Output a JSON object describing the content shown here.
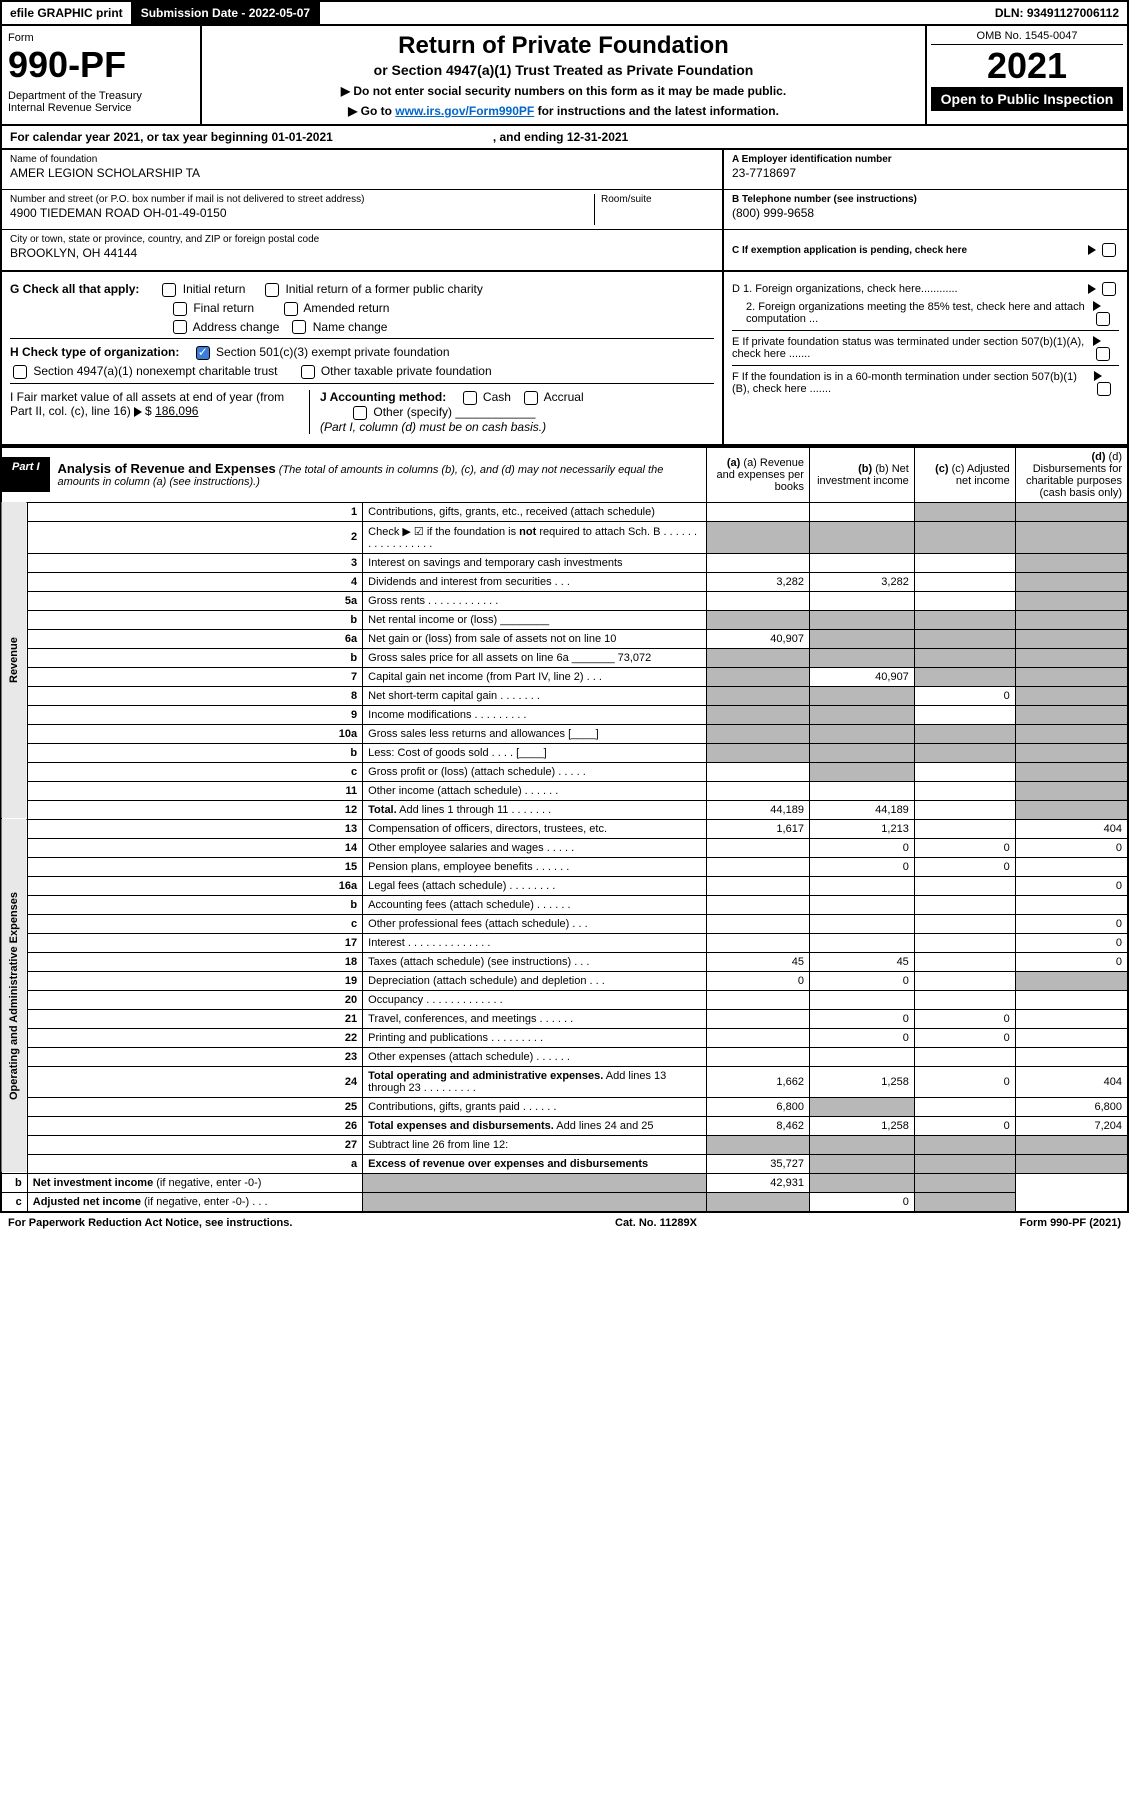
{
  "topbar": {
    "efile": "efile GRAPHIC print",
    "sub_label": "Submission Date - 2022-05-07",
    "dln": "DLN: 93491127006112"
  },
  "header": {
    "form_label": "Form",
    "form_num": "990-PF",
    "dept": "Department of the Treasury\nInternal Revenue Service",
    "title": "Return of Private Foundation",
    "subtitle": "or Section 4947(a)(1) Trust Treated as Private Foundation",
    "instr1": "▶ Do not enter social security numbers on this form as it may be made public.",
    "instr2_pre": "▶ Go to ",
    "instr2_link": "www.irs.gov/Form990PF",
    "instr2_post": " for instructions and the latest information.",
    "omb": "OMB No. 1545-0047",
    "year": "2021",
    "open_pub": "Open to Public Inspection"
  },
  "cal_year": {
    "pre": "For calendar year 2021, or tax year beginning 01-01-2021",
    "mid": ", and ending 12-31-2021"
  },
  "info": {
    "name_lbl": "Name of foundation",
    "name_val": "AMER LEGION SCHOLARSHIP TA",
    "addr_lbl": "Number and street (or P.O. box number if mail is not delivered to street address)",
    "addr_val": "4900 TIEDEMAN ROAD OH-01-49-0150",
    "room_lbl": "Room/suite",
    "city_lbl": "City or town, state or province, country, and ZIP or foreign postal code",
    "city_val": "BROOKLYN, OH  44144",
    "ein_lbl": "A Employer identification number",
    "ein_val": "23-7718697",
    "phone_lbl": "B Telephone number (see instructions)",
    "phone_val": "(800) 999-9658",
    "c_lbl": "C If exemption application is pending, check here"
  },
  "checks": {
    "g_label": "G Check all that apply:",
    "g_opts": [
      "Initial return",
      "Initial return of a former public charity",
      "Final return",
      "Amended return",
      "Address change",
      "Name change"
    ],
    "h_label": "H Check type of organization:",
    "h_opt1": "Section 501(c)(3) exempt private foundation",
    "h_opt2": "Section 4947(a)(1) nonexempt charitable trust",
    "h_opt3": "Other taxable private foundation",
    "i_label": "I Fair market value of all assets at end of year (from Part II, col. (c), line 16)",
    "i_val": "186,096",
    "j_label": "J Accounting method:",
    "j_opts": [
      "Cash",
      "Accrual"
    ],
    "j_other": "Other (specify)",
    "j_note": "(Part I, column (d) must be on cash basis.)",
    "d1": "D 1. Foreign organizations, check here............",
    "d2": "2. Foreign organizations meeting the 85% test, check here and attach computation ...",
    "e": "E  If private foundation status was terminated under section 507(b)(1)(A), check here .......",
    "f": "F  If the foundation is in a 60-month termination under section 507(b)(1)(B), check here ......."
  },
  "part_i": {
    "label": "Part I",
    "title": "Analysis of Revenue and Expenses",
    "title_note": "(The total of amounts in columns (b), (c), and (d) may not necessarily equal the amounts in column (a) (see instructions).)",
    "cols": {
      "a": "(a) Revenue and expenses per books",
      "b": "(b) Net investment income",
      "c": "(c) Adjusted net income",
      "d": "(d) Disbursements for charitable purposes (cash basis only)"
    }
  },
  "revenue_label": "Revenue",
  "oae_label": "Operating and Administrative Expenses",
  "rows": [
    {
      "n": "1",
      "d": "Contributions, gifts, grants, etc., received (attach schedule)",
      "a": "",
      "b": "",
      "c": "G",
      "dd": "G"
    },
    {
      "n": "2",
      "d": "Check ▶ ☑ if the foundation is <b>not</b> required to attach Sch. B  .  .  .  .  .  .  .  .  .  .  .  .  .  .  .  .  .",
      "a": "G",
      "b": "G",
      "c": "G",
      "dd": "G"
    },
    {
      "n": "3",
      "d": "Interest on savings and temporary cash investments",
      "a": "",
      "b": "",
      "c": "",
      "dd": "G"
    },
    {
      "n": "4",
      "d": "Dividends and interest from securities   .   .   .",
      "a": "3,282",
      "b": "3,282",
      "c": "",
      "dd": "G"
    },
    {
      "n": "5a",
      "d": "Gross rents   .   .   .   .   .   .   .   .   .   .   .   .",
      "a": "",
      "b": "",
      "c": "",
      "dd": "G"
    },
    {
      "n": "b",
      "d": "Net rental income or (loss)  ________",
      "a": "G",
      "b": "G",
      "c": "G",
      "dd": "G"
    },
    {
      "n": "6a",
      "d": "Net gain or (loss) from sale of assets not on line 10",
      "a": "40,907",
      "b": "G",
      "c": "G",
      "dd": "G"
    },
    {
      "n": "b",
      "d": "Gross sales price for all assets on line 6a _______ 73,072",
      "a": "G",
      "b": "G",
      "c": "G",
      "dd": "G"
    },
    {
      "n": "7",
      "d": "Capital gain net income (from Part IV, line 2)   .   .   .",
      "a": "G",
      "b": "40,907",
      "c": "G",
      "dd": "G"
    },
    {
      "n": "8",
      "d": "Net short-term capital gain   .   .   .   .   .   .   .",
      "a": "G",
      "b": "G",
      "c": "0",
      "dd": "G"
    },
    {
      "n": "9",
      "d": "Income modifications   .   .   .   .   .   .   .   .   .",
      "a": "G",
      "b": "G",
      "c": "",
      "dd": "G"
    },
    {
      "n": "10a",
      "d": "Gross sales less returns and allowances  [____]",
      "a": "G",
      "b": "G",
      "c": "G",
      "dd": "G"
    },
    {
      "n": "b",
      "d": "Less: Cost of goods sold   .   .   .   .   [____]",
      "a": "G",
      "b": "G",
      "c": "G",
      "dd": "G"
    },
    {
      "n": "c",
      "d": "Gross profit or (loss) (attach schedule)   .   .   .   .   .",
      "a": "",
      "b": "G",
      "c": "",
      "dd": "G"
    },
    {
      "n": "11",
      "d": "Other income (attach schedule)   .   .   .   .   .   .",
      "a": "",
      "b": "",
      "c": "",
      "dd": "G"
    },
    {
      "n": "12",
      "d": "<b>Total.</b> Add lines 1 through 11   .   .   .   .   .   .   .",
      "a": "44,189",
      "b": "44,189",
      "c": "",
      "dd": "G"
    },
    {
      "n": "13",
      "d": "Compensation of officers, directors, trustees, etc.",
      "a": "1,617",
      "b": "1,213",
      "c": "",
      "dd": "404"
    },
    {
      "n": "14",
      "d": "Other employee salaries and wages   .   .   .   .   .",
      "a": "",
      "b": "0",
      "c": "0",
      "dd": "0"
    },
    {
      "n": "15",
      "d": "Pension plans, employee benefits   .   .   .   .   .   .",
      "a": "",
      "b": "0",
      "c": "0",
      "dd": ""
    },
    {
      "n": "16a",
      "d": "Legal fees (attach schedule)  .   .   .   .   .   .   .   .",
      "a": "",
      "b": "",
      "c": "",
      "dd": "0"
    },
    {
      "n": "b",
      "d": "Accounting fees (attach schedule)   .   .   .   .   .   .",
      "a": "",
      "b": "",
      "c": "",
      "dd": ""
    },
    {
      "n": "c",
      "d": "Other professional fees (attach schedule)   .   .   .",
      "a": "",
      "b": "",
      "c": "",
      "dd": "0"
    },
    {
      "n": "17",
      "d": "Interest  .   .   .   .   .   .   .   .   .   .   .   .   .   .",
      "a": "",
      "b": "",
      "c": "",
      "dd": "0"
    },
    {
      "n": "18",
      "d": "Taxes (attach schedule) (see instructions)   .   .   .",
      "a": "45",
      "b": "45",
      "c": "",
      "dd": "0"
    },
    {
      "n": "19",
      "d": "Depreciation (attach schedule) and depletion   .   .   .",
      "a": "0",
      "b": "0",
      "c": "",
      "dd": "G"
    },
    {
      "n": "20",
      "d": "Occupancy   .   .   .   .   .   .   .   .   .   .   .   .   .",
      "a": "",
      "b": "",
      "c": "",
      "dd": ""
    },
    {
      "n": "21",
      "d": "Travel, conferences, and meetings   .   .   .   .   .   .",
      "a": "",
      "b": "0",
      "c": "0",
      "dd": ""
    },
    {
      "n": "22",
      "d": "Printing and publications   .   .   .   .   .   .   .   .   .",
      "a": "",
      "b": "0",
      "c": "0",
      "dd": ""
    },
    {
      "n": "23",
      "d": "Other expenses (attach schedule)   .   .   .   .   .   .",
      "a": "",
      "b": "",
      "c": "",
      "dd": ""
    },
    {
      "n": "24",
      "d": "<b>Total operating and administrative expenses.</b> Add lines 13 through 23   .   .   .   .   .   .   .   .   .",
      "a": "1,662",
      "b": "1,258",
      "c": "0",
      "dd": "404"
    },
    {
      "n": "25",
      "d": "Contributions, gifts, grants paid   .   .   .   .   .   .",
      "a": "6,800",
      "b": "G",
      "c": "",
      "dd": "6,800"
    },
    {
      "n": "26",
      "d": "<b>Total expenses and disbursements.</b> Add lines 24 and 25",
      "a": "8,462",
      "b": "1,258",
      "c": "0",
      "dd": "7,204"
    },
    {
      "n": "27",
      "d": "Subtract line 26 from line 12:",
      "a": "G",
      "b": "G",
      "c": "G",
      "dd": "G"
    },
    {
      "n": "a",
      "d": "<b>Excess of revenue over expenses and disbursements</b>",
      "a": "35,727",
      "b": "G",
      "c": "G",
      "dd": "G"
    },
    {
      "n": "b",
      "d": "<b>Net investment income</b> (if negative, enter -0-)",
      "a": "G",
      "b": "42,931",
      "c": "G",
      "dd": "G"
    },
    {
      "n": "c",
      "d": "<b>Adjusted net income</b> (if negative, enter -0-)   .   .   .",
      "a": "G",
      "b": "G",
      "c": "0",
      "dd": "G"
    }
  ],
  "footer": {
    "left": "For Paperwork Reduction Act Notice, see instructions.",
    "mid": "Cat. No. 11289X",
    "right": "Form 990-PF (2021)"
  },
  "colors": {
    "link": "#0066cc",
    "grey_cell": "#b8b8b8",
    "vert_bg": "#e8e8e8",
    "check_blue": "#3b7dd8"
  }
}
